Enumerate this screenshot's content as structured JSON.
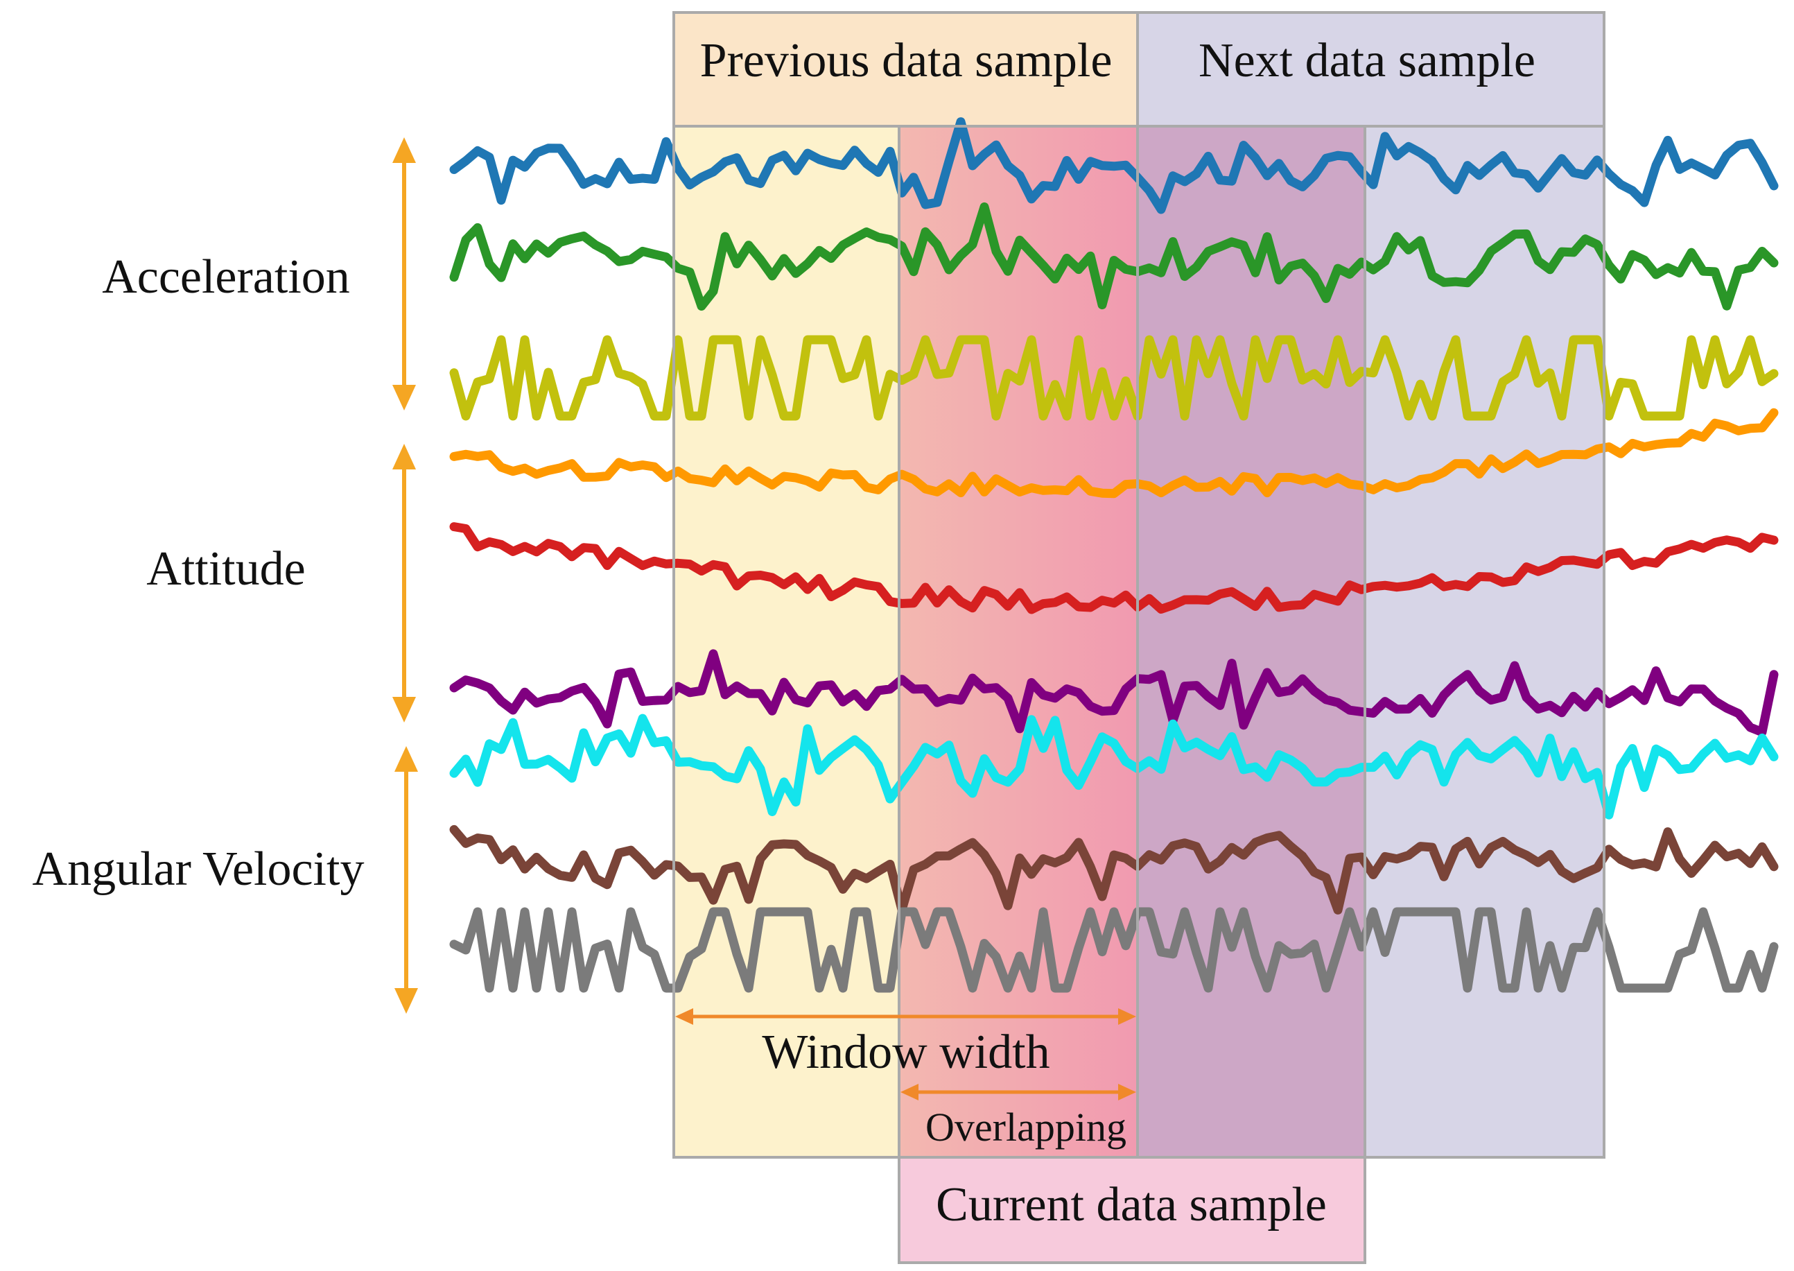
{
  "groups": [
    {
      "label": "Acceleration",
      "channels": 3
    },
    {
      "label": "Attitude",
      "channels": 3
    },
    {
      "label": "Angular Velocity",
      "channels": 3
    }
  ],
  "windows": {
    "previous": {
      "label": "Previous data sample",
      "color": "#fbe6c9"
    },
    "next": {
      "label": "Next data sample",
      "color": "#d6d4e6"
    },
    "current": {
      "label": "Current data sample",
      "color": "#f6c9da"
    }
  },
  "annotations": {
    "window_width": "Window width",
    "overlapping": "Overlapping"
  },
  "colors": {
    "arrow": "#f5a623",
    "span_arrow": "#f0892a",
    "series": [
      "#1f77b4",
      "#2a9628",
      "#c2c10e",
      "#ff9900",
      "#d62020",
      "#800080",
      "#14e4ec",
      "#7a4438",
      "#7b7b7b"
    ]
  }
}
